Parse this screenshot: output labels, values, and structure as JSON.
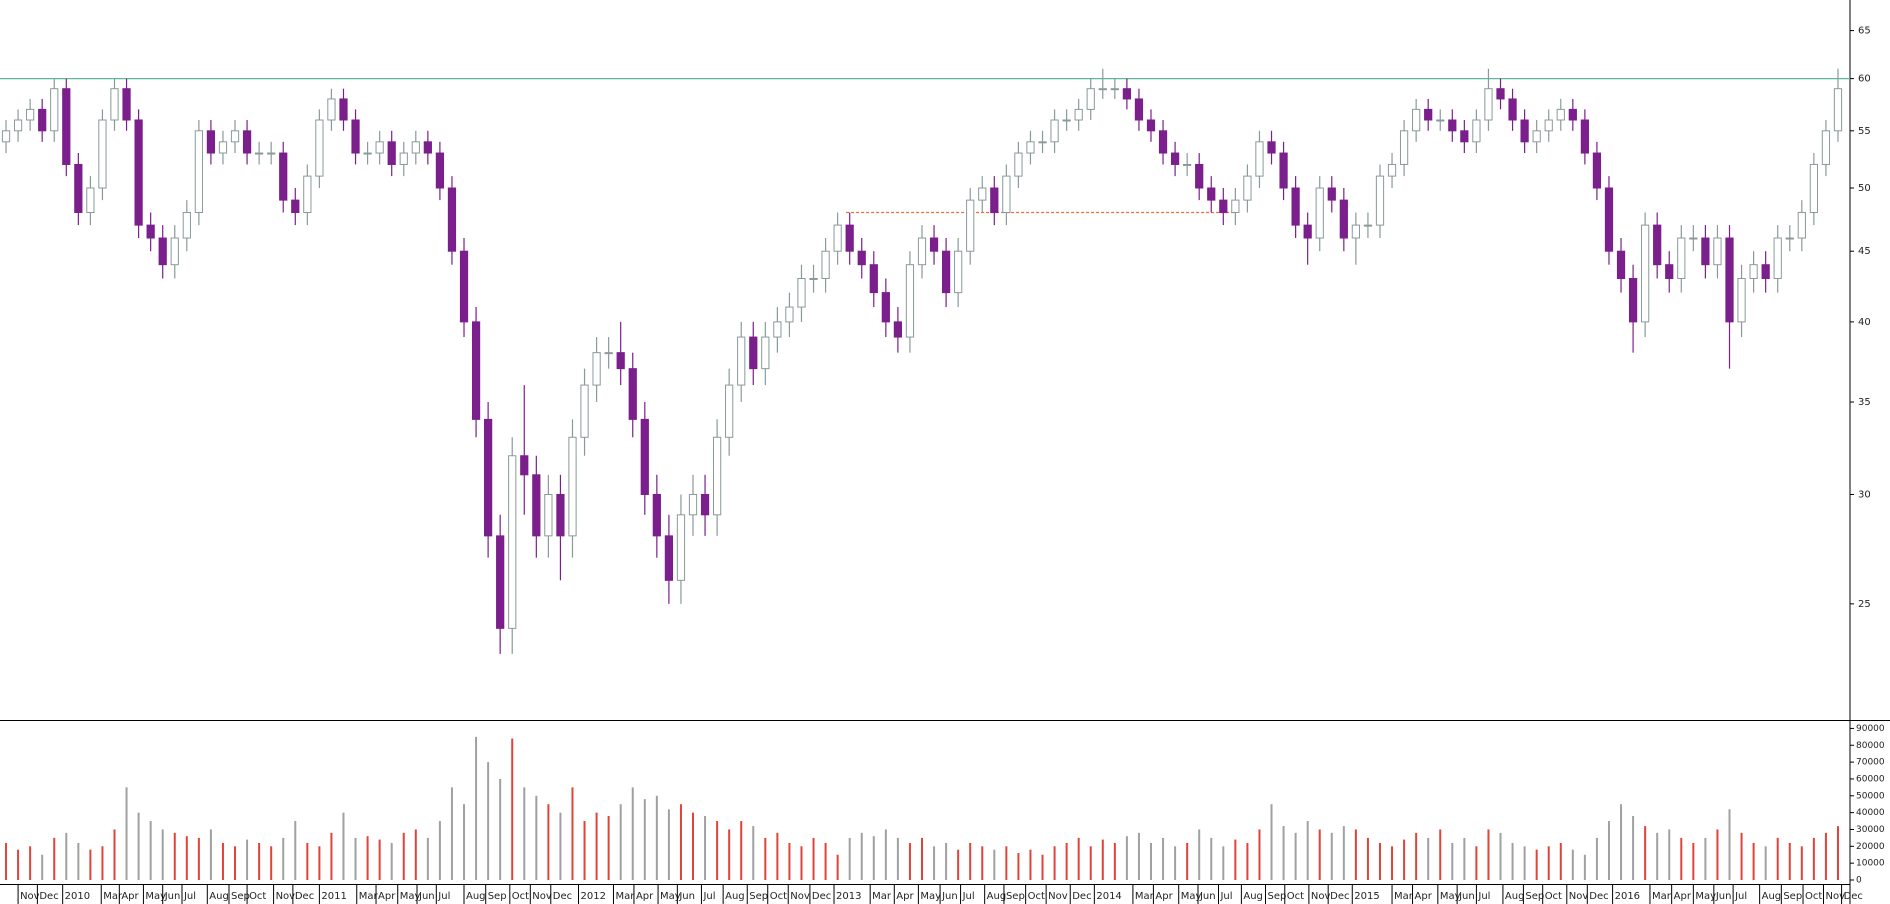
{
  "chart_data": {
    "type": "candlestick",
    "open": [
      54,
      55,
      56,
      57,
      55,
      59,
      52,
      48,
      50,
      56,
      59,
      56,
      47,
      46,
      44,
      46,
      48,
      55,
      53,
      54,
      55,
      53,
      53,
      53,
      49,
      48,
      51,
      56,
      58,
      56,
      53,
      53,
      54,
      52,
      53,
      54,
      53,
      50,
      45,
      40,
      34,
      28,
      24,
      32,
      31,
      28,
      30,
      28,
      33,
      36,
      38,
      38,
      37,
      34,
      30,
      28,
      26,
      29,
      30,
      29,
      33,
      36,
      39,
      37,
      39,
      40,
      41,
      43,
      43,
      45,
      47,
      45,
      44,
      42,
      40,
      39,
      44,
      46,
      45,
      42,
      45,
      49,
      50,
      48,
      51,
      53,
      54,
      54,
      56,
      56,
      57,
      59,
      59,
      59,
      58,
      56,
      55,
      53,
      52,
      52,
      50,
      49,
      48,
      49,
      51,
      54,
      53,
      50,
      47,
      46,
      50,
      49,
      46,
      47,
      47,
      51,
      52,
      55,
      57,
      56,
      56,
      55,
      54,
      56,
      59,
      58,
      56,
      54,
      55,
      56,
      57,
      56,
      53,
      50,
      45,
      43,
      40,
      47,
      44,
      43,
      46,
      46,
      44,
      46,
      40,
      43,
      44,
      43,
      46,
      46,
      48,
      52,
      55
    ],
    "high": [
      56,
      57,
      58,
      58,
      60,
      60,
      53,
      51,
      57,
      60,
      60,
      57,
      48,
      47,
      47,
      49,
      56,
      56,
      55,
      56,
      56,
      54,
      54,
      54,
      50,
      52,
      57,
      59,
      59,
      57,
      54,
      55,
      55,
      54,
      55,
      55,
      54,
      51,
      46,
      41,
      35,
      29,
      33,
      36,
      32,
      31,
      31,
      34,
      37,
      39,
      39,
      40,
      38,
      35,
      31,
      29,
      30,
      31,
      31,
      34,
      37,
      40,
      40,
      40,
      41,
      42,
      44,
      44,
      46,
      48,
      48,
      46,
      45,
      43,
      41,
      45,
      47,
      47,
      46,
      46,
      50,
      51,
      51,
      52,
      54,
      55,
      55,
      57,
      57,
      58,
      60,
      61,
      60,
      60,
      59,
      57,
      56,
      54,
      53,
      53,
      51,
      50,
      50,
      52,
      55,
      55,
      54,
      51,
      48,
      51,
      51,
      50,
      48,
      48,
      52,
      53,
      56,
      58,
      58,
      57,
      57,
      56,
      57,
      61,
      60,
      59,
      57,
      56,
      57,
      58,
      58,
      57,
      54,
      51,
      46,
      44,
      48,
      48,
      45,
      47,
      47,
      47,
      47,
      47,
      44,
      45,
      45,
      47,
      47,
      49,
      53,
      56,
      61
    ],
    "low": [
      53,
      54,
      55,
      54,
      54,
      51,
      47,
      47,
      49,
      55,
      55,
      46,
      45,
      43,
      43,
      45,
      47,
      52,
      52,
      53,
      52,
      52,
      52,
      48,
      47,
      47,
      50,
      55,
      55,
      52,
      52,
      52,
      51,
      51,
      52,
      52,
      49,
      44,
      39,
      33,
      27,
      23,
      23,
      29,
      27,
      27,
      26,
      27,
      32,
      35,
      37,
      36,
      33,
      29,
      27,
      25,
      25,
      28,
      28,
      28,
      32,
      35,
      36,
      36,
      38,
      39,
      40,
      42,
      42,
      44,
      44,
      43,
      41,
      39,
      38,
      38,
      43,
      44,
      41,
      41,
      44,
      48,
      47,
      47,
      50,
      52,
      53,
      53,
      55,
      55,
      56,
      58,
      58,
      57,
      55,
      54,
      52,
      51,
      51,
      49,
      48,
      47,
      47,
      48,
      50,
      52,
      49,
      46,
      44,
      45,
      48,
      45,
      44,
      46,
      46,
      50,
      51,
      54,
      55,
      55,
      54,
      53,
      53,
      55,
      57,
      55,
      53,
      53,
      54,
      55,
      55,
      52,
      49,
      44,
      42,
      38,
      39,
      43,
      42,
      42,
      45,
      43,
      43,
      37,
      39,
      42,
      42,
      42,
      45,
      45,
      47,
      51,
      54
    ],
    "close": [
      55,
      56,
      57,
      55,
      59,
      52,
      48,
      50,
      56,
      59,
      56,
      47,
      46,
      44,
      46,
      48,
      55,
      53,
      54,
      55,
      53,
      53,
      53,
      49,
      48,
      51,
      56,
      58,
      56,
      53,
      53,
      54,
      52,
      53,
      54,
      53,
      50,
      45,
      40,
      34,
      28,
      24,
      32,
      31,
      28,
      30,
      28,
      33,
      36,
      38,
      38,
      37,
      34,
      30,
      28,
      26,
      29,
      30,
      29,
      33,
      36,
      39,
      37,
      39,
      40,
      41,
      43,
      43,
      45,
      47,
      45,
      44,
      42,
      40,
      39,
      44,
      46,
      45,
      42,
      45,
      49,
      50,
      48,
      51,
      53,
      54,
      54,
      56,
      56,
      57,
      59,
      59,
      59,
      58,
      56,
      55,
      53,
      52,
      52,
      50,
      49,
      48,
      49,
      51,
      54,
      53,
      50,
      47,
      46,
      50,
      49,
      46,
      47,
      47,
      51,
      52,
      55,
      57,
      56,
      56,
      55,
      54,
      56,
      59,
      58,
      56,
      54,
      55,
      56,
      57,
      56,
      53,
      50,
      45,
      43,
      40,
      47,
      44,
      43,
      46,
      46,
      44,
      46,
      40,
      43,
      44,
      43,
      46,
      46,
      48,
      52,
      55,
      59
    ],
    "volume": [
      22000,
      18000,
      20000,
      15000,
      25000,
      28000,
      22000,
      18000,
      20000,
      30000,
      55000,
      40000,
      35000,
      30000,
      28000,
      26000,
      25000,
      30000,
      22000,
      20000,
      24000,
      22000,
      20000,
      25000,
      35000,
      22000,
      20000,
      28000,
      40000,
      25000,
      26000,
      24000,
      22000,
      28000,
      30000,
      25000,
      35000,
      55000,
      45000,
      85000,
      70000,
      60000,
      84000,
      55000,
      50000,
      45000,
      40000,
      55000,
      35000,
      40000,
      38000,
      45000,
      55000,
      48000,
      50000,
      42000,
      45000,
      40000,
      38000,
      35000,
      30000,
      35000,
      32000,
      25000,
      28000,
      22000,
      20000,
      25000,
      22000,
      15000,
      25000,
      28000,
      26000,
      30000,
      25000,
      22000,
      25000,
      20000,
      22000,
      18000,
      22000,
      20000,
      18000,
      20000,
      16000,
      18000,
      15000,
      20000,
      22000,
      25000,
      20000,
      24000,
      22000,
      26000,
      28000,
      22000,
      25000,
      20000,
      22000,
      30000,
      25000,
      20000,
      24000,
      22000,
      30000,
      45000,
      32000,
      28000,
      35000,
      30000,
      28000,
      32000,
      30000,
      25000,
      22000,
      20000,
      24000,
      28000,
      25000,
      30000,
      22000,
      25000,
      20000,
      30000,
      28000,
      22000,
      20000,
      18000,
      20000,
      22000,
      18000,
      15000,
      25000,
      35000,
      45000,
      38000,
      32000,
      28000,
      30000,
      25000,
      22000,
      25000,
      30000,
      42000,
      28000,
      22000,
      20000,
      25000,
      22000,
      20000,
      25000,
      28000,
      32000
    ],
    "up_color": "#8a9a9a",
    "down_color": "#7b1f8c",
    "volume_up_color": "#e0433a",
    "volume_down_color": "#a0a0a0",
    "xlim": [
      0,
      153
    ],
    "xticks": [
      {
        "value": 1.5,
        "label": "Nov"
      },
      {
        "value": 3.1,
        "label": "Dec"
      },
      {
        "value": 5.2,
        "label": "2010"
      },
      {
        "value": 8.4,
        "label": "Mar"
      },
      {
        "value": 9.9,
        "label": "Apr"
      },
      {
        "value": 11.9,
        "label": "May"
      },
      {
        "value": 13.5,
        "label": "Jun"
      },
      {
        "value": 15.1,
        "label": "Jul"
      },
      {
        "value": 17.2,
        "label": "Aug"
      },
      {
        "value": 19.0,
        "label": "Sep"
      },
      {
        "value": 20.5,
        "label": "Oct"
      },
      {
        "value": 22.7,
        "label": "Nov"
      },
      {
        "value": 24.3,
        "label": "Dec"
      },
      {
        "value": 26.5,
        "label": "2011"
      },
      {
        "value": 29.6,
        "label": "Mar"
      },
      {
        "value": 31.2,
        "label": "Apr"
      },
      {
        "value": 33.0,
        "label": "May"
      },
      {
        "value": 34.6,
        "label": "Jun"
      },
      {
        "value": 36.2,
        "label": "Jul"
      },
      {
        "value": 38.5,
        "label": "Aug"
      },
      {
        "value": 40.3,
        "label": "Sep"
      },
      {
        "value": 42.3,
        "label": "Oct"
      },
      {
        "value": 44.0,
        "label": "Nov"
      },
      {
        "value": 45.7,
        "label": "Dec"
      },
      {
        "value": 48.0,
        "label": "2012"
      },
      {
        "value": 50.9,
        "label": "Mar"
      },
      {
        "value": 52.6,
        "label": "Apr"
      },
      {
        "value": 54.6,
        "label": "May"
      },
      {
        "value": 56.2,
        "label": "Jun"
      },
      {
        "value": 58.2,
        "label": "Jul"
      },
      {
        "value": 60.0,
        "label": "Aug"
      },
      {
        "value": 62.0,
        "label": "Sep"
      },
      {
        "value": 63.7,
        "label": "Oct"
      },
      {
        "value": 65.4,
        "label": "Nov"
      },
      {
        "value": 67.2,
        "label": "Dec"
      },
      {
        "value": 69.2,
        "label": "2013"
      },
      {
        "value": 72.2,
        "label": "Mar"
      },
      {
        "value": 74.2,
        "label": "Apr"
      },
      {
        "value": 76.2,
        "label": "May"
      },
      {
        "value": 78.0,
        "label": "Jun"
      },
      {
        "value": 79.7,
        "label": "Jul"
      },
      {
        "value": 81.7,
        "label": "Aug"
      },
      {
        "value": 83.3,
        "label": "Sep"
      },
      {
        "value": 85.1,
        "label": "Oct"
      },
      {
        "value": 86.8,
        "label": "Nov"
      },
      {
        "value": 88.8,
        "label": "Dec"
      },
      {
        "value": 90.8,
        "label": "2014"
      },
      {
        "value": 94.0,
        "label": "Mar"
      },
      {
        "value": 95.7,
        "label": "Apr"
      },
      {
        "value": 97.8,
        "label": "May"
      },
      {
        "value": 99.4,
        "label": "Jun"
      },
      {
        "value": 101.1,
        "label": "Jul"
      },
      {
        "value": 103.0,
        "label": "Aug"
      },
      {
        "value": 105.0,
        "label": "Sep"
      },
      {
        "value": 106.6,
        "label": "Oct"
      },
      {
        "value": 108.6,
        "label": "Nov"
      },
      {
        "value": 110.2,
        "label": "Dec"
      },
      {
        "value": 112.2,
        "label": "2015"
      },
      {
        "value": 115.5,
        "label": "Mar"
      },
      {
        "value": 117.2,
        "label": "Apr"
      },
      {
        "value": 119.3,
        "label": "May"
      },
      {
        "value": 120.9,
        "label": "Jun"
      },
      {
        "value": 122.5,
        "label": "Jul"
      },
      {
        "value": 124.7,
        "label": "Aug"
      },
      {
        "value": 126.4,
        "label": "Sep"
      },
      {
        "value": 128.0,
        "label": "Oct"
      },
      {
        "value": 130.0,
        "label": "Nov"
      },
      {
        "value": 131.7,
        "label": "Dec"
      },
      {
        "value": 133.8,
        "label": "2016"
      },
      {
        "value": 136.9,
        "label": "Mar"
      },
      {
        "value": 138.7,
        "label": "Apr"
      },
      {
        "value": 140.5,
        "label": "May"
      },
      {
        "value": 142.2,
        "label": "Jun"
      },
      {
        "value": 143.8,
        "label": "Jul"
      },
      {
        "value": 146.0,
        "label": "Aug"
      },
      {
        "value": 147.8,
        "label": "Sep"
      },
      {
        "value": 149.6,
        "label": "Oct"
      },
      {
        "value": 151.3,
        "label": "Nov"
      },
      {
        "value": 152.8,
        "label": "Dec"
      }
    ],
    "ylim": [
      20.6,
      68.4
    ],
    "yticks": [
      25,
      30,
      35,
      40,
      45,
      50,
      55,
      60,
      65
    ],
    "log_scale": true,
    "volume_ylim": [
      0,
      95000
    ],
    "volume_ticks": [
      0,
      10000,
      20000,
      30000,
      40000,
      50000,
      60000,
      70000,
      80000,
      90000
    ],
    "lines": [
      {
        "value": 60,
        "color": "#5fb89a"
      },
      {
        "value": 48,
        "x": [
          70.2,
          102.5
        ],
        "color": "#e8703a",
        "dashed": true
      }
    ]
  }
}
